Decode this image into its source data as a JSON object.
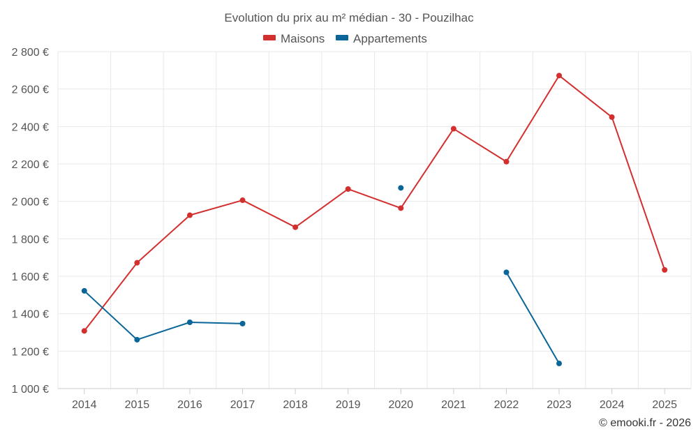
{
  "chart_data": {
    "type": "line",
    "title": "Evolution du prix au m² médian - 30 - Pouzilhac",
    "categories": [
      "2014",
      "2015",
      "2016",
      "2017",
      "2018",
      "2019",
      "2020",
      "2021",
      "2022",
      "2023",
      "2024",
      "2025"
    ],
    "ylim": [
      1000,
      2800
    ],
    "yticks": [
      1000,
      1200,
      1400,
      1600,
      1800,
      2000,
      2200,
      2400,
      2600,
      2800
    ],
    "ytick_labels": [
      "1 000 €",
      "1 200 €",
      "1 400 €",
      "1 600 €",
      "1 800 €",
      "2 000 €",
      "2 200 €",
      "2 400 €",
      "2 600 €",
      "2 800 €"
    ],
    "grid": true,
    "legend_position": "top-center",
    "series": [
      {
        "name": "Maisons",
        "color": "#d32f2f",
        "values": [
          1308,
          1672,
          1926,
          2006,
          1862,
          2066,
          1964,
          2388,
          2212,
          2672,
          2450,
          1634
        ]
      },
      {
        "name": "Appartements",
        "color": "#0a6699",
        "values": [
          1522,
          1261,
          1354,
          1347,
          null,
          null,
          2072,
          null,
          1621,
          1134,
          null,
          null
        ]
      }
    ],
    "credit": "© emooki.fr - 2026"
  }
}
